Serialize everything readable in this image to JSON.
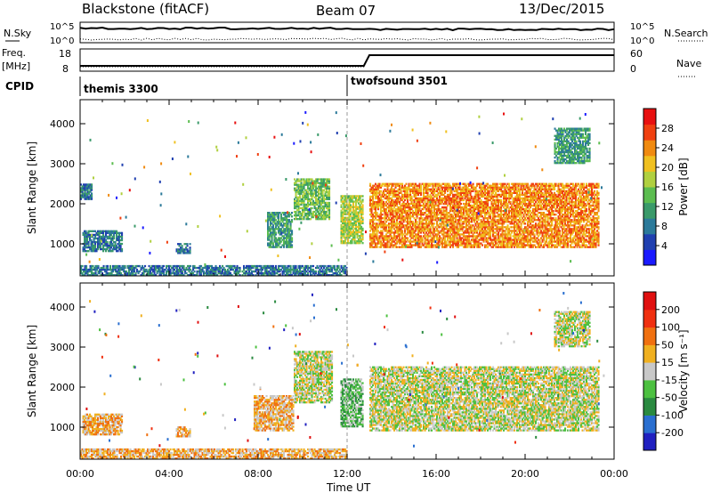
{
  "header": {
    "station": "Blackstone (fitACF)",
    "beam": "Beam 07",
    "date": "13/Dec/2015"
  },
  "summary": {
    "nsky_label": "N.Sky",
    "nsky_ticks": [
      "10^5",
      "10^0"
    ],
    "nsearch_label": "N.Search",
    "nsearch_ticks": [
      "10^5",
      "10^0"
    ],
    "freq_label": "Freq.",
    "freq_unit": "[MHz]",
    "freq_ticks": [
      "18",
      "8"
    ],
    "nave_label": "Nave",
    "nave_ticks": [
      "60",
      "0"
    ],
    "cpid_label": "CPID",
    "cpid_modes": [
      {
        "name": "themis 3300",
        "start_hour": 0
      },
      {
        "name": "twofsound 3501",
        "start_hour": 12
      }
    ]
  },
  "chart_data": [
    {
      "type": "heatmap",
      "title": "",
      "xlabel": "Time UT",
      "ylabel": "Slant Range [km]",
      "xlim": [
        0,
        24
      ],
      "ylim": [
        200,
        4600
      ],
      "yticks": [
        1000,
        2000,
        3000,
        4000
      ],
      "colorbar": {
        "label": "Power [dB]",
        "ticks": [
          "4",
          "8",
          "12",
          "16",
          "20",
          "24",
          "28"
        ],
        "colors": [
          "#1a1aff",
          "#2040b0",
          "#2c7a9a",
          "#3a9a6a",
          "#5cbd50",
          "#b0d040",
          "#f0c020",
          "#f08a10",
          "#f04010",
          "#e81010"
        ]
      },
      "echo_regions": [
        {
          "t0": 0.0,
          "t1": 0.5,
          "r0": 2100,
          "r1": 2500,
          "level": 2
        },
        {
          "t0": 0.1,
          "t1": 1.9,
          "r0": 800,
          "r1": 1300,
          "level": 2
        },
        {
          "t0": 4.3,
          "t1": 4.9,
          "r0": 750,
          "r1": 1000,
          "level": 2
        },
        {
          "t0": 8.4,
          "t1": 9.5,
          "r0": 900,
          "r1": 1800,
          "level": 3
        },
        {
          "t0": 9.6,
          "t1": 11.2,
          "r0": 1600,
          "r1": 2600,
          "level": 4
        },
        {
          "t0": 11.7,
          "t1": 12.7,
          "r0": 1000,
          "r1": 2200,
          "level": 5
        },
        {
          "t0": 13.0,
          "t1": 23.3,
          "r0": 900,
          "r1": 2500,
          "level": 7
        },
        {
          "t0": 21.3,
          "t1": 22.9,
          "r0": 3000,
          "r1": 3900,
          "level": 3
        },
        {
          "t0": 0.0,
          "t1": 12.0,
          "r0": 200,
          "r1": 450,
          "level": 2
        }
      ]
    },
    {
      "type": "heatmap",
      "title": "",
      "xlabel": "Time UT",
      "ylabel": "Slant Range [km]",
      "xlim": [
        0,
        24
      ],
      "ylim": [
        200,
        4600
      ],
      "yticks": [
        1000,
        2000,
        3000,
        4000
      ],
      "xticks": [
        "00:00",
        "04:00",
        "08:00",
        "12:00",
        "16:00",
        "20:00",
        "00:00"
      ],
      "colorbar": {
        "label": "Velocity [m s⁻¹]",
        "ticks": [
          "200",
          "100",
          "50",
          "15",
          "-15",
          "-50",
          "-100",
          "-200"
        ],
        "colors": [
          "#2020c0",
          "#2a6fd0",
          "#2a8a40",
          "#4cc040",
          "#c8c8c8",
          "#f0b020",
          "#f07010",
          "#f03010",
          "#e01010"
        ]
      },
      "echo_regions": [
        {
          "t0": 0.1,
          "t1": 1.9,
          "r0": 800,
          "r1": 1300,
          "level": 5
        },
        {
          "t0": 4.3,
          "t1": 4.9,
          "r0": 750,
          "r1": 1000,
          "level": 5
        },
        {
          "t0": 7.8,
          "t1": 9.6,
          "r0": 900,
          "r1": 1800,
          "level": 5
        },
        {
          "t0": 9.6,
          "t1": 11.3,
          "r0": 1600,
          "r1": 2900,
          "level": 4
        },
        {
          "t0": 11.7,
          "t1": 12.7,
          "r0": 1000,
          "r1": 2200,
          "level": 3
        },
        {
          "t0": 13.0,
          "t1": 23.3,
          "r0": 900,
          "r1": 2500,
          "level": 4
        },
        {
          "t0": 21.3,
          "t1": 22.9,
          "r0": 3000,
          "r1": 3900,
          "level": 4
        },
        {
          "t0": 0.0,
          "t1": 12.0,
          "r0": 200,
          "r1": 450,
          "level": 5
        }
      ]
    }
  ]
}
